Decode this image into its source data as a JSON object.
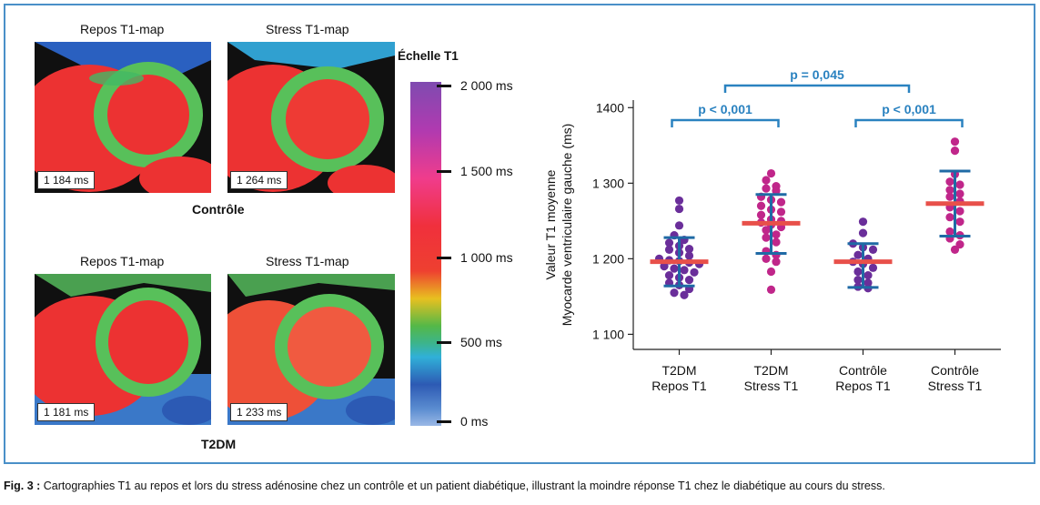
{
  "maps": {
    "controle": {
      "group_label": "Contrôle",
      "rest": {
        "title": "Repos T1-map",
        "value": "1 184 ms"
      },
      "stress": {
        "title": "Stress T1-map",
        "value": "1 264 ms"
      }
    },
    "t2dm": {
      "group_label": "T2DM",
      "rest": {
        "title": "Repos T1-map",
        "value": "1 181 ms"
      },
      "stress": {
        "title": "Stress T1-map",
        "value": "1 233 ms"
      }
    }
  },
  "scale": {
    "title": "Échelle T1",
    "ticks": [
      "2 000 ms",
      "1 500 ms",
      "1 000 ms",
      "500 ms",
      "0 ms"
    ]
  },
  "colors": {
    "mean_bar": "#e8504a",
    "error_bar": "#1f6aa5",
    "bracket": "#2a82c0",
    "purple": "#6a2e9a",
    "magenta": "#c0268a"
  },
  "chart_data": {
    "type": "scatter",
    "ylabel_lines": [
      "Valeur T1 moyenne",
      "Myocarde ventriculaire gauche (ms)"
    ],
    "ylim": [
      1080,
      1410
    ],
    "yticks": [
      1100,
      1200,
      1300,
      1400
    ],
    "ytick_labels": [
      "1 100",
      "1 200",
      "1 300",
      "1400"
    ],
    "categories": [
      {
        "line1": "T2DM",
        "line2": "Repos T1"
      },
      {
        "line1": "T2DM",
        "line2": "Stress T1"
      },
      {
        "line1": "Contrôle",
        "line2": "Repos T1"
      },
      {
        "line1": "Contrôle",
        "line2": "Stress T1"
      }
    ],
    "groups": [
      {
        "mean": 1196,
        "sd_low": 1164,
        "sd_high": 1228,
        "color": "purple",
        "points": [
          1277,
          1266,
          1244,
          1231,
          1225,
          1221,
          1217,
          1213,
          1212,
          1208,
          1204,
          1200,
          1198,
          1197,
          1195,
          1193,
          1190,
          1187,
          1185,
          1182,
          1178,
          1175,
          1172,
          1168,
          1165,
          1160,
          1155,
          1152
        ]
      },
      {
        "mean": 1247,
        "sd_low": 1207,
        "sd_high": 1285,
        "color": "magenta",
        "points": [
          1313,
          1304,
          1296,
          1293,
          1290,
          1282,
          1278,
          1275,
          1270,
          1265,
          1262,
          1258,
          1252,
          1250,
          1248,
          1245,
          1242,
          1238,
          1232,
          1228,
          1222,
          1210,
          1205,
          1200,
          1196,
          1183,
          1159
        ]
      },
      {
        "mean": 1196,
        "sd_low": 1162,
        "sd_high": 1220,
        "color": "purple",
        "points": [
          1249,
          1234,
          1220,
          1215,
          1212,
          1205,
          1200,
          1196,
          1193,
          1188,
          1183,
          1178,
          1172,
          1168,
          1163,
          1161
        ]
      },
      {
        "mean": 1273,
        "sd_low": 1230,
        "sd_high": 1316,
        "color": "magenta",
        "points": [
          1355,
          1343,
          1312,
          1302,
          1298,
          1291,
          1286,
          1282,
          1276,
          1268,
          1263,
          1255,
          1249,
          1236,
          1231,
          1227,
          1219,
          1212
        ]
      }
    ],
    "comparisons": [
      {
        "from": 0,
        "to": 1,
        "label": "p < 0,001"
      },
      {
        "from": 2,
        "to": 3,
        "label": "p < 0,001"
      },
      {
        "from": 0.5,
        "to": 2.5,
        "label": "p = 0,045"
      }
    ]
  },
  "caption": {
    "prefix": "Fig. 3 :",
    "text": " Cartographies T1 au repos et lors du stress adénosine chez un contrôle et un patient diabétique, illustrant la moindre réponse T1 chez le diabétique au cours du stress."
  }
}
